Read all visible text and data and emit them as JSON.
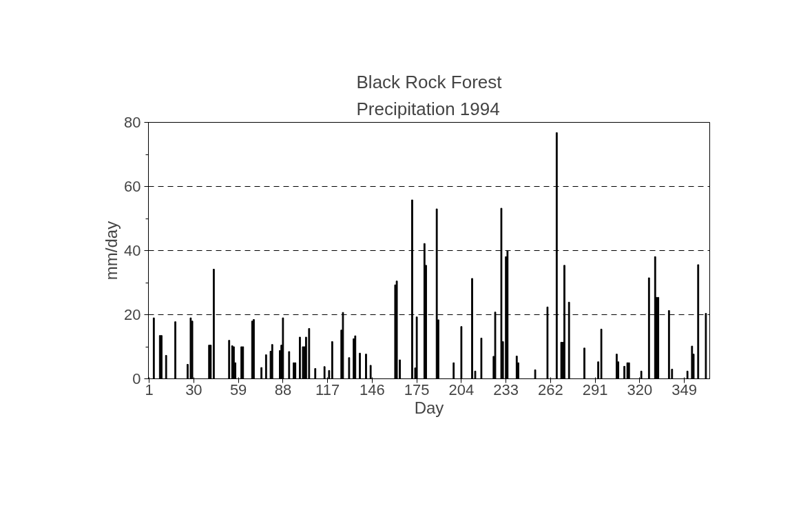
{
  "chart_data": {
    "type": "bar",
    "title": "Black Rock Forest\nPrecipitation 1994",
    "xlabel": "Day",
    "ylabel": "mm/day",
    "x": [
      4,
      8,
      9,
      12,
      18,
      26,
      28,
      29,
      40,
      41,
      43,
      53,
      55,
      56,
      57,
      61,
      62,
      68,
      69,
      74,
      77,
      80,
      81,
      86,
      87,
      88,
      92,
      95,
      96,
      99,
      101,
      102,
      103,
      105,
      109,
      115,
      118,
      120,
      126,
      127,
      131,
      134,
      135,
      138,
      142,
      145,
      161,
      162,
      164,
      172,
      174,
      175,
      180,
      181,
      188,
      189,
      199,
      204,
      211,
      213,
      217,
      225,
      226,
      230,
      231,
      233,
      234,
      240,
      241,
      252,
      260,
      266,
      269,
      270,
      271,
      274,
      284,
      293,
      295,
      305,
      306,
      310,
      312,
      313,
      321,
      326,
      330,
      331,
      332,
      339,
      341,
      351,
      354,
      355,
      358,
      363
    ],
    "values": [
      19,
      13.5,
      13.5,
      7.3,
      17.8,
      4.5,
      19,
      18,
      10.5,
      10.5,
      34.2,
      12,
      10.3,
      10,
      5,
      10,
      10,
      18,
      18.5,
      3.5,
      7.5,
      8.6,
      10.7,
      8.8,
      10.5,
      19,
      8.5,
      5,
      5,
      13,
      10,
      10,
      13,
      15.7,
      3.2,
      3.8,
      2.6,
      11.6,
      15.2,
      20.7,
      6.6,
      12.5,
      13.4,
      8,
      7.7,
      4.2,
      29.3,
      30.5,
      5.9,
      55.8,
      3.4,
      19.3,
      42.2,
      35.4,
      53,
      18.4,
      5,
      16.3,
      31.3,
      2.4,
      12.7,
      7,
      20.8,
      53.2,
      11.6,
      38.1,
      39.9,
      7.1,
      5,
      2.8,
      22.4,
      76.8,
      11.4,
      11.4,
      35.4,
      23.9,
      9.6,
      5.3,
      15.5,
      7.7,
      5.3,
      3.9,
      5,
      5,
      2.4,
      31.5,
      38.1,
      25.4,
      25.4,
      21.3,
      3,
      2.4,
      10.2,
      7.7,
      35.6,
      20.4
    ],
    "color": "#000000",
    "xlim": [
      0.5,
      365.5
    ],
    "xticks": [
      1,
      30,
      59,
      88,
      117,
      146,
      175,
      204,
      233,
      262,
      291,
      320,
      349
    ],
    "ylim": [
      0,
      80
    ],
    "yticks": [
      0,
      20,
      40,
      60,
      80
    ],
    "grid": "y"
  }
}
